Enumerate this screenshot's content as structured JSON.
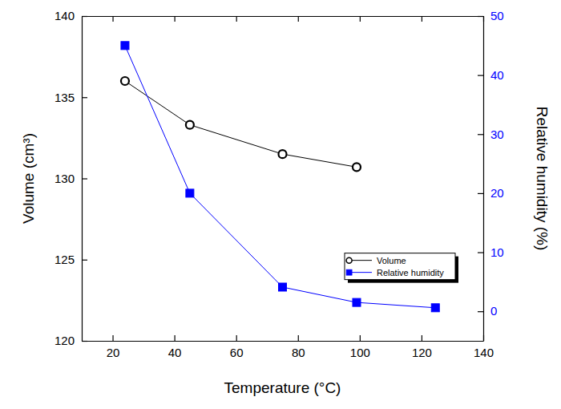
{
  "chart_data": {
    "type": "line",
    "x": [
      24,
      45,
      75,
      99,
      124.5
    ],
    "xlabel": "Temperature (°C)",
    "ylabel": "Volume (cm³)",
    "y2label": "Relative humidity (%)",
    "xlim": [
      10,
      140
    ],
    "xticks": [
      20,
      40,
      60,
      80,
      100,
      120,
      140
    ],
    "ylim": [
      120,
      140
    ],
    "yticks": [
      120,
      125,
      130,
      135,
      140
    ],
    "y2lim": [
      -5,
      50
    ],
    "y2ticks": [
      0,
      10,
      20,
      30,
      40,
      50
    ],
    "legend": "right",
    "series": [
      {
        "name": "Volume",
        "color": "#000000",
        "marker": "circle",
        "values": [
          136.0,
          133.3,
          131.5,
          130.7,
          null
        ]
      },
      {
        "name": "Relative humidity",
        "color": "#0000ff",
        "marker": "square",
        "axis": "y2",
        "values": [
          45,
          20,
          4.1,
          1.5,
          0.6
        ]
      }
    ]
  }
}
